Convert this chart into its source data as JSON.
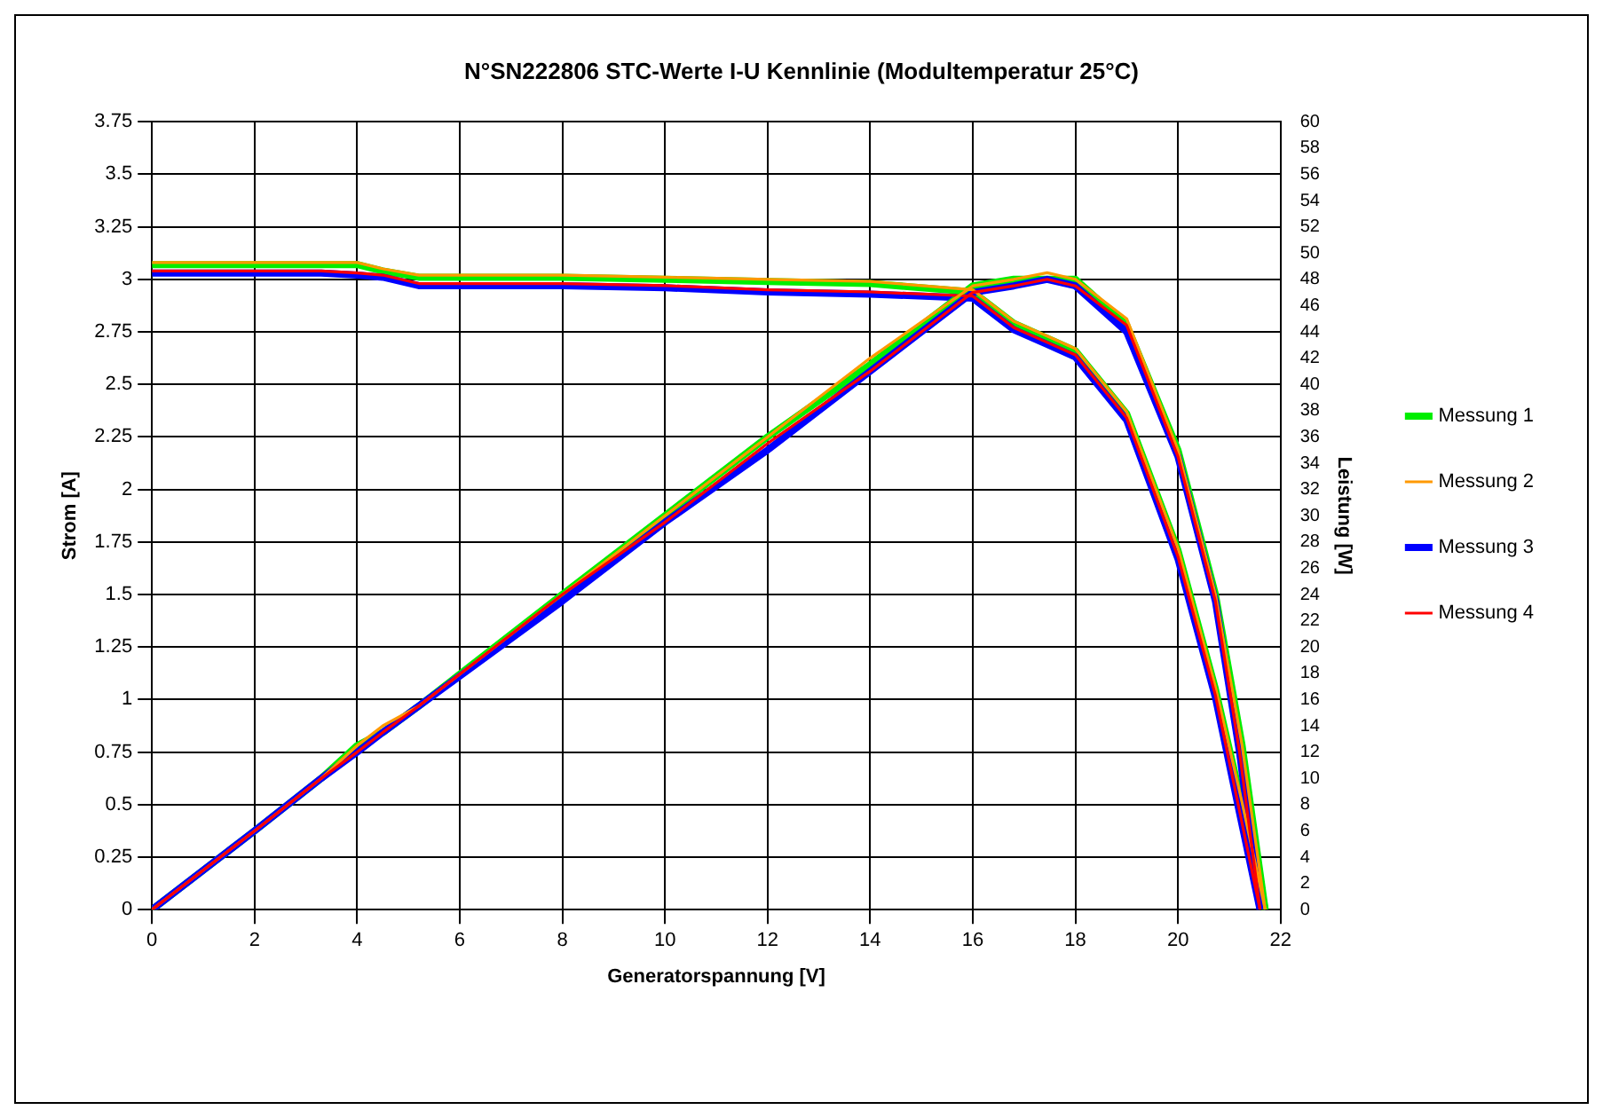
{
  "chart_data": {
    "type": "line",
    "title": "N°SN222806 STC-Werte I-U Kennlinie (Modultemperatur 25°C)",
    "xlabel": "Generatorspannung [V]",
    "ylabel": "Strom [A]",
    "y2label": "Leistung [W]",
    "x": [
      0,
      2,
      3.3,
      4,
      4.5,
      5.2,
      8,
      10,
      12,
      14,
      16,
      16.8,
      17.45,
      18,
      19,
      20,
      20.73,
      21.2,
      21.6
    ],
    "series": [
      {
        "name": "Messung 1",
        "color": "#00ee00",
        "x": [
          0,
          2,
          3.3,
          4,
          4.5,
          5.2,
          8,
          10,
          12,
          14,
          16,
          16.8,
          17.45,
          18,
          19,
          20,
          20.73,
          21.25,
          21.7
        ],
        "values": [
          3.07,
          3.07,
          3.07,
          3.07,
          3.04,
          3.01,
          3.01,
          3.0,
          2.99,
          2.98,
          2.94,
          2.79,
          2.72,
          2.66,
          2.36,
          1.71,
          1.05,
          0.5,
          0
        ]
      },
      {
        "name": "Messung 2",
        "color": "#ff9900",
        "x": [
          0,
          2,
          3.3,
          4,
          4.5,
          5.2,
          8,
          10,
          12,
          14,
          16,
          16.8,
          17.45,
          18,
          19,
          20,
          20.73,
          21.25,
          21.7
        ],
        "values": [
          3.08,
          3.08,
          3.08,
          3.08,
          3.05,
          3.02,
          3.02,
          3.01,
          3.0,
          2.99,
          2.95,
          2.8,
          2.73,
          2.67,
          2.37,
          1.72,
          1.06,
          0.51,
          0
        ]
      },
      {
        "name": "Messung 3",
        "color": "#0000ff",
        "values": [
          3.03,
          3.03,
          3.03,
          3.02,
          3.01,
          2.97,
          2.97,
          2.96,
          2.94,
          2.93,
          2.91,
          2.76,
          2.69,
          2.63,
          2.33,
          1.67,
          1.01,
          0.46,
          0
        ]
      },
      {
        "name": "Messung 4",
        "color": "#ff0000",
        "values": [
          3.04,
          3.04,
          3.04,
          3.03,
          3.02,
          2.98,
          2.98,
          2.97,
          2.95,
          2.94,
          2.92,
          2.77,
          2.7,
          2.64,
          2.34,
          1.68,
          1.02,
          0.47,
          0
        ]
      },
      {
        "color": "#00ee00",
        "axis": "y2",
        "x": [
          0,
          2,
          3.3,
          4,
          4.5,
          5.2,
          8,
          10,
          12,
          14,
          16,
          16.8,
          17.45,
          18,
          19,
          20,
          20.73,
          21.25,
          21.7
        ],
        "values": [
          0,
          6,
          10,
          12.5,
          13.5,
          15.5,
          24,
          30,
          36,
          41.5,
          47.5,
          48,
          48,
          48,
          44.5,
          35,
          24,
          12.5,
          0
        ]
      },
      {
        "color": "#ff9900",
        "axis": "y2",
        "x": [
          0,
          2,
          3.3,
          4,
          4.5,
          5.2,
          8,
          10,
          12,
          14,
          16,
          16.8,
          17.45,
          18,
          19,
          20,
          20.73,
          21.25,
          21.7
        ],
        "values": [
          0,
          6,
          10,
          12.5,
          14,
          15.5,
          24,
          30,
          36,
          42,
          47.5,
          48,
          48.5,
          48,
          45,
          35,
          24,
          12.5,
          0
        ]
      },
      {
        "color": "#0000ff",
        "axis": "y2",
        "values": [
          0,
          6,
          10,
          12,
          13.5,
          15.5,
          23.5,
          29.5,
          35,
          41,
          47,
          47.5,
          48,
          47.5,
          44,
          34.5,
          23.5,
          12,
          0
        ]
      },
      {
        "color": "#ff0000",
        "axis": "y2",
        "values": [
          0,
          6,
          10,
          12,
          13.5,
          15.5,
          24,
          29.5,
          35.5,
          41,
          47,
          47.5,
          48,
          47.5,
          44.5,
          34.5,
          23.5,
          12,
          0
        ]
      }
    ],
    "xlim": [
      0,
      22
    ],
    "xticks": [
      0,
      2,
      4,
      6,
      8,
      10,
      12,
      14,
      16,
      18,
      20,
      22
    ],
    "ylim": [
      0,
      3.75
    ],
    "yticks": [
      0,
      0.25,
      0.5,
      0.75,
      1,
      1.25,
      1.5,
      1.75,
      2,
      2.25,
      2.5,
      2.75,
      3,
      3.25,
      3.5,
      3.75
    ],
    "y2lim": [
      0,
      60
    ],
    "y2ticks": [
      0,
      2,
      4,
      6,
      8,
      10,
      12,
      14,
      16,
      18,
      20,
      22,
      24,
      26,
      28,
      30,
      32,
      34,
      36,
      38,
      40,
      42,
      44,
      46,
      48,
      50,
      52,
      54,
      56,
      58,
      60
    ],
    "grid": true,
    "legend": "right",
    "marker": "none",
    "line_style": "solid"
  }
}
